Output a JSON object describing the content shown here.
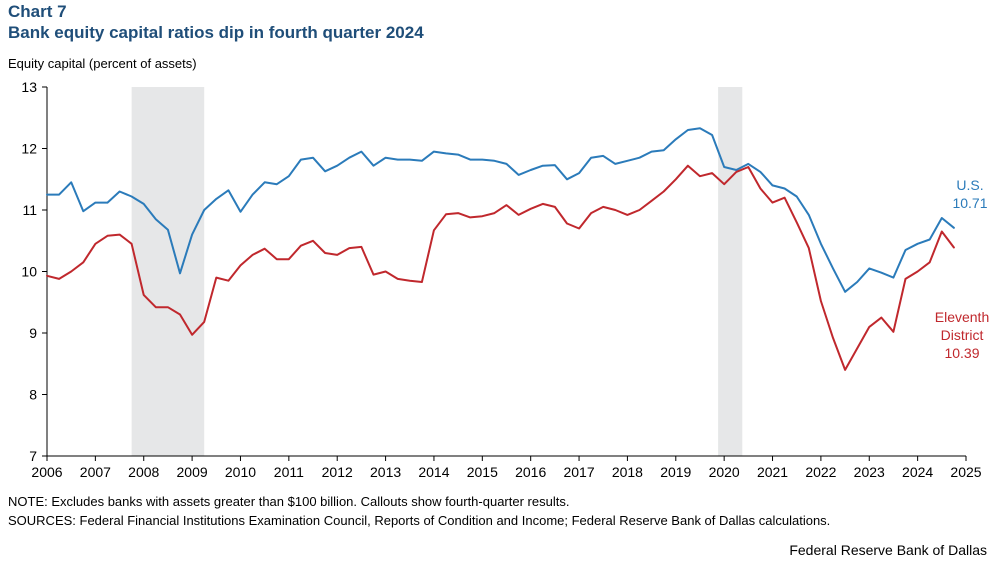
{
  "header": {
    "chart_label": "Chart 7",
    "title": "Bank equity capital ratios dip in fourth quarter 2024",
    "ylabel": "Equity capital (percent of assets)"
  },
  "footer": {
    "note": "NOTE: Excludes banks with assets greater than $100 billion.  Callouts show fourth-quarter results.",
    "sources": "SOURCES: Federal Financial Institutions Examination Council, Reports of Condition and Income; Federal Reserve Bank of Dallas calculations.",
    "credit": "Federal Reserve Bank of Dallas"
  },
  "colors": {
    "us": "#2b7bba",
    "eleventh": "#c0282d",
    "recession": "#e6e7e8"
  },
  "chart_data": {
    "type": "line",
    "title": "Bank equity capital ratios dip in fourth quarter 2024",
    "ylabel": "Equity capital (percent of assets)",
    "xlabel": "",
    "xlim": [
      2006,
      2025
    ],
    "ylim": [
      7,
      13
    ],
    "yticks": [
      7,
      8,
      9,
      10,
      11,
      12,
      13
    ],
    "xticks": [
      2006,
      2007,
      2008,
      2009,
      2010,
      2011,
      2012,
      2013,
      2014,
      2015,
      2016,
      2017,
      2018,
      2019,
      2020,
      2021,
      2022,
      2023,
      2024,
      2025
    ],
    "recessions": [
      [
        2007.75,
        2009.25
      ],
      [
        2019.875,
        2020.375
      ]
    ],
    "x_start": 2006,
    "x_step": 0.25,
    "series": [
      {
        "name": "U.S.",
        "color": "#2b7bba",
        "callout_name": "U.S.",
        "callout_value": "10.71",
        "values": [
          11.25,
          11.25,
          11.45,
          10.98,
          11.12,
          11.12,
          11.3,
          11.22,
          11.1,
          10.85,
          10.68,
          9.97,
          10.6,
          11.0,
          11.18,
          11.32,
          10.97,
          11.25,
          11.45,
          11.42,
          11.55,
          11.82,
          11.85,
          11.63,
          11.72,
          11.85,
          11.95,
          11.72,
          11.85,
          11.82,
          11.82,
          11.8,
          11.95,
          11.92,
          11.9,
          11.82,
          11.82,
          11.8,
          11.75,
          11.57,
          11.65,
          11.72,
          11.73,
          11.5,
          11.6,
          11.85,
          11.88,
          11.75,
          11.8,
          11.85,
          11.95,
          11.97,
          12.15,
          12.3,
          12.33,
          12.22,
          11.7,
          11.65,
          11.75,
          11.62,
          11.4,
          11.35,
          11.22,
          10.92,
          10.45,
          10.05,
          9.67,
          9.83,
          10.05,
          9.98,
          9.9,
          10.35,
          10.45,
          10.52,
          10.87,
          10.71
        ]
      },
      {
        "name": "Eleventh District",
        "color": "#c0282d",
        "callout_name_1": "Eleventh",
        "callout_name_2": "District",
        "callout_value": "10.39",
        "values": [
          9.93,
          9.88,
          10.0,
          10.15,
          10.45,
          10.58,
          10.6,
          10.45,
          9.62,
          9.42,
          9.42,
          9.3,
          8.97,
          9.18,
          9.9,
          9.85,
          10.1,
          10.27,
          10.37,
          10.2,
          10.2,
          10.42,
          10.5,
          10.3,
          10.27,
          10.38,
          10.4,
          9.95,
          10.0,
          9.88,
          9.85,
          9.83,
          10.67,
          10.93,
          10.95,
          10.88,
          10.9,
          10.95,
          11.08,
          10.92,
          11.02,
          11.1,
          11.05,
          10.78,
          10.7,
          10.95,
          11.05,
          11.0,
          10.92,
          11.0,
          11.15,
          11.3,
          11.5,
          11.72,
          11.55,
          11.6,
          11.42,
          11.62,
          11.7,
          11.35,
          11.12,
          11.2,
          10.8,
          10.38,
          9.52,
          8.92,
          8.4,
          8.75,
          9.1,
          9.25,
          9.02,
          9.88,
          10.0,
          10.15,
          10.65,
          10.39
        ]
      }
    ]
  }
}
